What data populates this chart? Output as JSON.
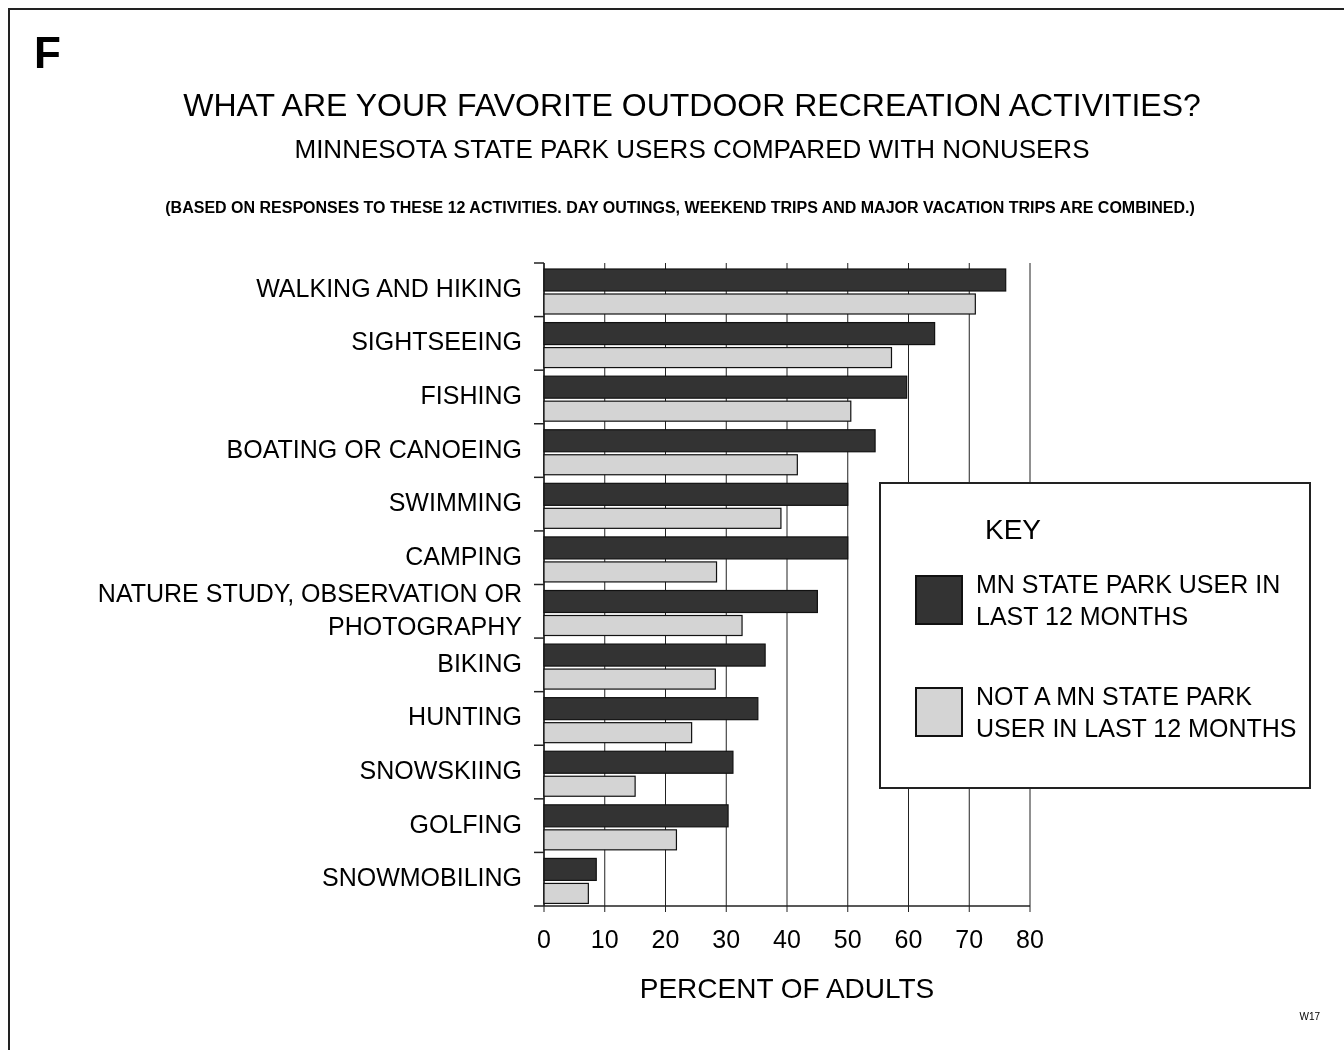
{
  "chart_data": {
    "type": "bar",
    "orientation": "horizontal",
    "title": "WHAT ARE YOUR FAVORITE OUTDOOR RECREATION ACTIVITIES?",
    "subtitle": "MINNESOTA STATE PARK USERS COMPARED WITH NONUSERS",
    "annotations": [
      "F",
      "(BASED ON RESPONSES TO THESE 12 ACTIVITIES.  DAY OUTINGS, WEEKEND TRIPS AND MAJOR VACATION TRIPS ARE COMBINED.)",
      "W17"
    ],
    "xlabel": "PERCENT OF ADULTS",
    "legend_title": "KEY",
    "categories": [
      "WALKING AND HIKING",
      "SIGHTSEEING",
      "FISHING",
      "BOATING OR CANOEING",
      "SWIMMING",
      "CAMPING",
      "NATURE STUDY, OBSERVATION OR PHOTOGRAPHY",
      "BIKING",
      "HUNTING",
      "SNOWSKIING",
      "GOLFING",
      "SNOWMOBILING"
    ],
    "series": [
      {
        "name": "MN STATE PARK USER IN LAST 12 MONTHS",
        "color": "#333333",
        "values": [
          76,
          64.3,
          59.7,
          54.5,
          50,
          50,
          45,
          36.4,
          35.2,
          31.1,
          30.3,
          8.6
        ]
      },
      {
        "name": "NOT A MN STATE PARK USER IN LAST 12 MONTHS",
        "color": "#d4d4d4",
        "values": [
          71,
          57.2,
          50.5,
          41.7,
          39,
          28.4,
          32.6,
          28.2,
          24.3,
          15,
          21.8,
          7.3
        ]
      }
    ],
    "xlim": [
      0,
      80
    ],
    "xticks": [
      0,
      10,
      20,
      30,
      40,
      50,
      60,
      70,
      80
    ],
    "grid": "x",
    "legend": "right"
  }
}
